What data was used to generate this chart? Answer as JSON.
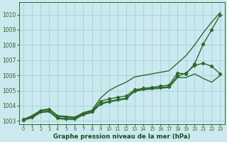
{
  "xlabel": "Graphe pression niveau de la mer (hPa)",
  "xlim": [
    -0.5,
    23.5
  ],
  "ylim": [
    1002.8,
    1010.8
  ],
  "xticks": [
    0,
    1,
    2,
    3,
    4,
    5,
    6,
    7,
    8,
    9,
    10,
    11,
    12,
    13,
    14,
    15,
    16,
    17,
    18,
    19,
    20,
    21,
    22,
    23
  ],
  "yticks": [
    1003,
    1004,
    1005,
    1006,
    1007,
    1008,
    1009,
    1010
  ],
  "background_color": "#cce9f0",
  "grid_color": "#a8d4dc",
  "line_color": "#2d6a2d",
  "series": [
    {
      "x": [
        0,
        1,
        2,
        3,
        4,
        5,
        6,
        7,
        8,
        9,
        10,
        11,
        12,
        13,
        14,
        15,
        16,
        17,
        18,
        19,
        20,
        21,
        22,
        23
      ],
      "y": [
        1003.1,
        1003.35,
        1003.7,
        1003.8,
        1003.35,
        1003.3,
        1003.25,
        1003.55,
        1003.7,
        1004.5,
        1005.0,
        1005.3,
        1005.55,
        1005.9,
        1006.0,
        1006.1,
        1006.2,
        1006.3,
        1006.8,
        1007.3,
        1008.0,
        1008.8,
        1009.5,
        1010.15
      ],
      "marker": false,
      "lw": 1.0
    },
    {
      "x": [
        0,
        1,
        2,
        3,
        4,
        5,
        6,
        7,
        8,
        9,
        10,
        11,
        12,
        13,
        14,
        15,
        16,
        17,
        18,
        19,
        20,
        21,
        22,
        23
      ],
      "y": [
        1003.1,
        1003.3,
        1003.65,
        1003.75,
        1003.3,
        1003.25,
        1003.2,
        1003.5,
        1003.65,
        1004.3,
        1004.45,
        1004.55,
        1004.65,
        1005.05,
        1005.15,
        1005.2,
        1005.3,
        1005.35,
        1006.15,
        1006.1,
        1006.75,
        1008.05,
        1009.0,
        1010.0
      ],
      "marker": true,
      "lw": 1.0
    },
    {
      "x": [
        0,
        1,
        2,
        3,
        4,
        5,
        6,
        7,
        8,
        9,
        10,
        11,
        12,
        13,
        14,
        15,
        16,
        17,
        18,
        19,
        20,
        21,
        22,
        23
      ],
      "y": [
        1003.05,
        1003.25,
        1003.6,
        1003.65,
        1003.2,
        1003.15,
        1003.15,
        1003.45,
        1003.6,
        1004.15,
        1004.3,
        1004.4,
        1004.5,
        1005.0,
        1005.1,
        1005.15,
        1005.2,
        1005.25,
        1005.95,
        1006.15,
        1006.65,
        1006.8,
        1006.6,
        1006.1
      ],
      "marker": true,
      "lw": 1.0
    },
    {
      "x": [
        0,
        1,
        2,
        3,
        4,
        5,
        6,
        7,
        8,
        9,
        10,
        11,
        12,
        13,
        14,
        15,
        16,
        17,
        18,
        19,
        20,
        21,
        22,
        23
      ],
      "y": [
        1003.05,
        1003.2,
        1003.55,
        1003.6,
        1003.15,
        1003.1,
        1003.1,
        1003.4,
        1003.55,
        1004.1,
        1004.25,
        1004.35,
        1004.45,
        1004.95,
        1005.05,
        1005.1,
        1005.15,
        1005.2,
        1005.85,
        1005.85,
        1006.1,
        1005.8,
        1005.55,
        1006.0
      ],
      "marker": false,
      "lw": 1.0
    }
  ]
}
